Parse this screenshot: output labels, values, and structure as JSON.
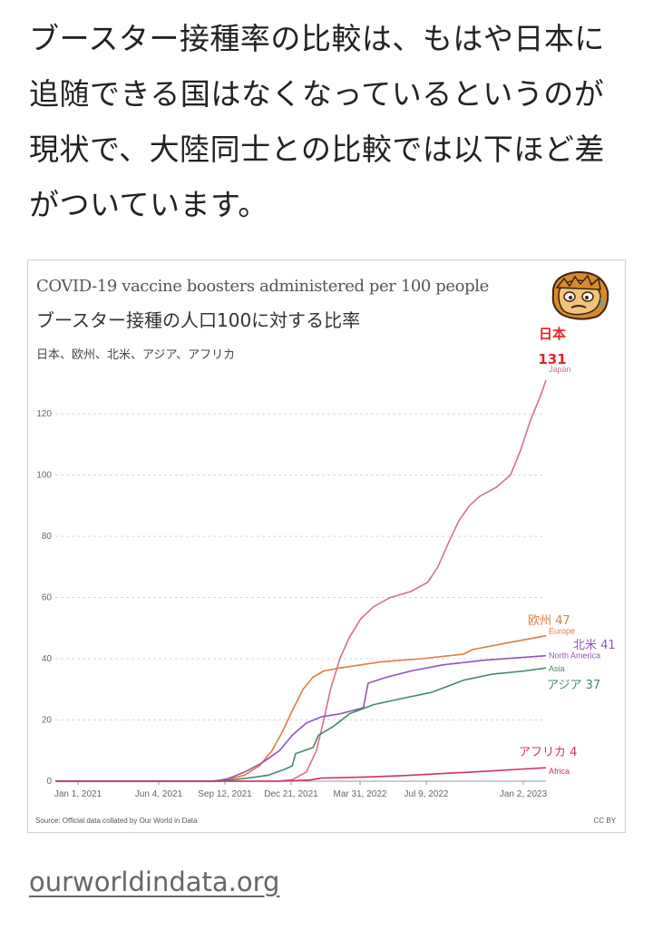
{
  "post": {
    "text": "ブースター接種率の比較は、もはや日本に追随できる国はなくなっているというのが現状で、大陸同士との比較では以下ほど差がついています。",
    "source_link": "ourworldindata.org"
  },
  "chart_data": {
    "type": "line",
    "title": "COVID-19 vaccine boosters administered per 100 people",
    "subtitle": "ブースター接種の人口100に対する比率",
    "entities_caption": "日本、欧州、北米、アジア、アフリカ",
    "source": "Source: Official data collated by Our World in Data",
    "license": "CC BY",
    "x_ticks": [
      "Jan 1, 2021",
      "Jun 4, 2021",
      "Sep 12, 2021",
      "Dec 21, 2021",
      "Mar 31, 2022",
      "Jul 9, 2022",
      "Jan 2, 2023"
    ],
    "y_ticks": [
      0,
      20,
      40,
      60,
      80,
      100,
      120
    ],
    "ylim": [
      0,
      131
    ],
    "xlim": [
      "2021-01-01",
      "2023-01-02"
    ],
    "grid": true,
    "series": [
      {
        "name": "Japan",
        "label": "日本",
        "value_label": "131",
        "color": "#d66f8c",
        "points": [
          [
            "2021-01-01",
            0
          ],
          [
            "2021-11-28",
            0
          ],
          [
            "2021-12-20",
            0.5
          ],
          [
            "2022-01-10",
            3
          ],
          [
            "2022-01-25",
            10
          ],
          [
            "2022-02-05",
            20
          ],
          [
            "2022-02-15",
            30
          ],
          [
            "2022-03-01",
            40
          ],
          [
            "2022-03-15",
            47
          ],
          [
            "2022-04-01",
            53
          ],
          [
            "2022-04-20",
            57
          ],
          [
            "2022-05-15",
            60
          ],
          [
            "2022-06-15",
            62
          ],
          [
            "2022-07-10",
            65
          ],
          [
            "2022-07-25",
            70
          ],
          [
            "2022-08-10",
            78
          ],
          [
            "2022-08-25",
            85
          ],
          [
            "2022-09-10",
            90
          ],
          [
            "2022-09-25",
            93
          ],
          [
            "2022-10-20",
            96
          ],
          [
            "2022-11-10",
            100
          ],
          [
            "2022-11-25",
            108
          ],
          [
            "2022-12-10",
            118
          ],
          [
            "2022-12-25",
            126
          ],
          [
            "2023-01-02",
            131
          ]
        ]
      },
      {
        "name": "Europe",
        "label": "欧州",
        "value_label": "47",
        "color": "#e07b3f",
        "points": [
          [
            "2021-01-01",
            0
          ],
          [
            "2021-08-20",
            0
          ],
          [
            "2021-09-15",
            0.6
          ],
          [
            "2021-10-10",
            2
          ],
          [
            "2021-11-01",
            5
          ],
          [
            "2021-11-20",
            10
          ],
          [
            "2021-12-05",
            16
          ],
          [
            "2021-12-20",
            23
          ],
          [
            "2022-01-05",
            30
          ],
          [
            "2022-01-20",
            34
          ],
          [
            "2022-02-05",
            36
          ],
          [
            "2022-03-01",
            37
          ],
          [
            "2022-04-01",
            38
          ],
          [
            "2022-05-01",
            39
          ],
          [
            "2022-07-01",
            40
          ],
          [
            "2022-09-01",
            41.5
          ],
          [
            "2022-09-15",
            43
          ],
          [
            "2022-11-01",
            45
          ],
          [
            "2023-01-02",
            47.5
          ]
        ]
      },
      {
        "name": "North America",
        "label": "北米",
        "value_label": "41",
        "color": "#9454b8",
        "points": [
          [
            "2021-01-01",
            0
          ],
          [
            "2021-08-25",
            0
          ],
          [
            "2021-09-15",
            0.8
          ],
          [
            "2021-10-10",
            3
          ],
          [
            "2021-11-05",
            6
          ],
          [
            "2021-12-01",
            10
          ],
          [
            "2021-12-20",
            15
          ],
          [
            "2022-01-10",
            19
          ],
          [
            "2022-02-01",
            21
          ],
          [
            "2022-03-01",
            22
          ],
          [
            "2022-04-05",
            24
          ],
          [
            "2022-04-12",
            32
          ],
          [
            "2022-05-10",
            34
          ],
          [
            "2022-06-15",
            36
          ],
          [
            "2022-08-01",
            38
          ],
          [
            "2022-10-01",
            39.5
          ],
          [
            "2023-01-02",
            41
          ]
        ]
      },
      {
        "name": "Asia",
        "label": "アジア",
        "value_label": "37",
        "color": "#3f8c63",
        "points": [
          [
            "2021-01-01",
            0
          ],
          [
            "2021-09-01",
            0
          ],
          [
            "2021-10-15",
            1
          ],
          [
            "2021-11-15",
            2
          ],
          [
            "2021-12-10",
            4
          ],
          [
            "2021-12-20",
            5
          ],
          [
            "2021-12-25",
            9
          ],
          [
            "2022-01-20",
            11
          ],
          [
            "2022-01-28",
            15
          ],
          [
            "2022-02-20",
            18
          ],
          [
            "2022-03-15",
            22
          ],
          [
            "2022-04-20",
            25
          ],
          [
            "2022-06-01",
            27
          ],
          [
            "2022-07-15",
            29
          ],
          [
            "2022-09-01",
            33
          ],
          [
            "2022-10-15",
            35
          ],
          [
            "2022-12-01",
            36
          ],
          [
            "2023-01-02",
            37
          ]
        ]
      },
      {
        "name": "Africa",
        "label": "アフリカ",
        "value_label": "4",
        "color": "#d2306e",
        "points": [
          [
            "2021-01-01",
            0
          ],
          [
            "2021-12-01",
            0
          ],
          [
            "2022-01-15",
            0.4
          ],
          [
            "2022-02-01",
            1
          ],
          [
            "2022-04-01",
            1.3
          ],
          [
            "2022-06-01",
            1.8
          ],
          [
            "2022-08-01",
            2.5
          ],
          [
            "2022-10-01",
            3.2
          ],
          [
            "2022-12-01",
            4
          ],
          [
            "2023-01-02",
            4.4
          ]
        ]
      }
    ]
  }
}
